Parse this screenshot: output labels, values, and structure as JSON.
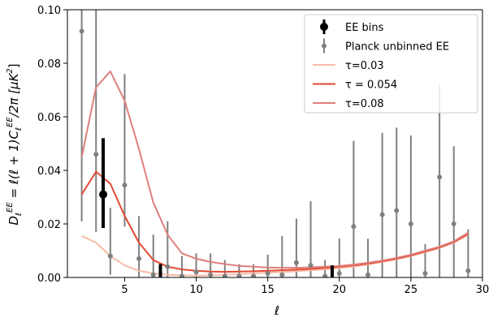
{
  "chart_data": {
    "type": "line",
    "xlabel": "ℓ",
    "ylabel": "D_ℓ^EE = ℓ(ℓ+1)C_ℓ^EE/2π  [μK²]",
    "ylabel_parts": {
      "main": "D",
      "main_sub": "ℓ",
      "main_sup": "EE",
      "eq": " = ℓ(ℓ + 1)C",
      "c_sub": "ℓ",
      "c_sup": "EE",
      "tail": "/2π  [μK",
      "unit_sup": "2",
      "close": "]"
    },
    "xlim": [
      1,
      30
    ],
    "ylim": [
      0.0,
      0.1
    ],
    "xticks": [
      5,
      10,
      15,
      20,
      25,
      30
    ],
    "yticks": [
      0.0,
      0.02,
      0.04,
      0.06,
      0.08,
      0.1
    ],
    "ytick_labels": [
      "0.00",
      "0.02",
      "0.04",
      "0.06",
      "0.08",
      "0.10"
    ],
    "grid": false,
    "legend_position": "top-right",
    "legend": [
      {
        "label": "EE bins",
        "kind": "binned",
        "color": "#000000"
      },
      {
        "label": "Planck unbinned EE",
        "kind": "unbinned",
        "color": "#808080"
      },
      {
        "label": "τ=0.03",
        "kind": "line",
        "color": "#f7bba6"
      },
      {
        "label": "τ = 0.054",
        "kind": "line",
        "color": "#e34a33"
      },
      {
        "label": "τ=0.08",
        "kind": "line",
        "color": "#de7f7d"
      }
    ],
    "x": [
      2,
      3,
      4,
      5,
      6,
      7,
      8,
      9,
      10,
      11,
      12,
      13,
      14,
      15,
      16,
      17,
      18,
      19,
      20,
      21,
      22,
      23,
      24,
      25,
      26,
      27,
      28,
      29
    ],
    "series": [
      {
        "name": "τ=0.03",
        "color": "#f7bba6",
        "values": [
          0.0155,
          0.013,
          0.008,
          0.0045,
          0.0025,
          0.0015,
          0.001,
          0.0008,
          0.0007,
          0.0008,
          0.001,
          0.0012,
          0.0015,
          0.0018,
          0.002,
          0.0023,
          0.0027,
          0.003,
          0.0035,
          0.004,
          0.0048,
          0.0058,
          0.0068,
          0.008,
          0.0095,
          0.011,
          0.013,
          0.016
        ]
      },
      {
        "name": "τ = 0.054",
        "color": "#e34a33",
        "values": [
          0.031,
          0.0395,
          0.035,
          0.023,
          0.013,
          0.0065,
          0.004,
          0.003,
          0.0025,
          0.0022,
          0.0021,
          0.0022,
          0.0023,
          0.0025,
          0.0027,
          0.0029,
          0.0032,
          0.0036,
          0.004,
          0.0045,
          0.0052,
          0.006,
          0.007,
          0.0082,
          0.0097,
          0.0112,
          0.0132,
          0.0162
        ]
      },
      {
        "name": "τ=0.08",
        "color": "#de7f7d",
        "values": [
          0.045,
          0.071,
          0.077,
          0.066,
          0.048,
          0.028,
          0.016,
          0.009,
          0.007,
          0.0058,
          0.005,
          0.0043,
          0.004,
          0.0037,
          0.0036,
          0.0036,
          0.0038,
          0.004,
          0.0043,
          0.0048,
          0.0055,
          0.0063,
          0.0073,
          0.0085,
          0.01,
          0.0115,
          0.0135,
          0.0167
        ]
      }
    ],
    "unbinned": [
      {
        "x": 2,
        "y": 0.092,
        "lo": 0.021,
        "hi": 0.102
      },
      {
        "x": 3,
        "y": 0.046,
        "lo": 0.017,
        "hi": 0.102
      },
      {
        "x": 4,
        "y": 0.008,
        "lo": 0.001,
        "hi": 0.026
      },
      {
        "x": 5,
        "y": 0.0345,
        "lo": 0.019,
        "hi": 0.076
      },
      {
        "x": 6,
        "y": 0.007,
        "lo": 0.0,
        "hi": 0.023
      },
      {
        "x": 7,
        "y": 0.001,
        "lo": 0.0,
        "hi": 0.016
      },
      {
        "x": 8,
        "y": 0.004,
        "lo": 0.0,
        "hi": 0.021
      },
      {
        "x": 9,
        "y": 0.0005,
        "lo": 0.0,
        "hi": 0.008
      },
      {
        "x": 10,
        "y": 0.002,
        "lo": 0.0,
        "hi": 0.009
      },
      {
        "x": 11,
        "y": 0.001,
        "lo": 0.0,
        "hi": 0.009
      },
      {
        "x": 12,
        "y": 0.0005,
        "lo": 0.0,
        "hi": 0.0065
      },
      {
        "x": 13,
        "y": 0.0005,
        "lo": 0.0,
        "hi": 0.005
      },
      {
        "x": 14,
        "y": 0.0005,
        "lo": 0.0,
        "hi": 0.005
      },
      {
        "x": 15,
        "y": 0.0015,
        "lo": 0.0,
        "hi": 0.0085
      },
      {
        "x": 16,
        "y": 0.001,
        "lo": 0.0,
        "hi": 0.0155
      },
      {
        "x": 17,
        "y": 0.0055,
        "lo": 0.0,
        "hi": 0.022
      },
      {
        "x": 18,
        "y": 0.0045,
        "lo": 0.0,
        "hi": 0.0285
      },
      {
        "x": 19,
        "y": 0.0005,
        "lo": 0.0,
        "hi": 0.0065
      },
      {
        "x": 20,
        "y": 0.0015,
        "lo": 0.0,
        "hi": 0.0145
      },
      {
        "x": 21,
        "y": 0.019,
        "lo": 0.0,
        "hi": 0.051
      },
      {
        "x": 22,
        "y": 0.001,
        "lo": 0.0,
        "hi": 0.0145
      },
      {
        "x": 23,
        "y": 0.0235,
        "lo": 0.0,
        "hi": 0.054
      },
      {
        "x": 24,
        "y": 0.025,
        "lo": 0.0,
        "hi": 0.056
      },
      {
        "x": 25,
        "y": 0.02,
        "lo": 0.0,
        "hi": 0.053
      },
      {
        "x": 26,
        "y": 0.0015,
        "lo": 0.0,
        "hi": 0.0125
      },
      {
        "x": 27,
        "y": 0.0375,
        "lo": 0.0,
        "hi": 0.072
      },
      {
        "x": 28,
        "y": 0.02,
        "lo": 0.0,
        "hi": 0.049
      },
      {
        "x": 29,
        "y": 0.0025,
        "lo": 0.0,
        "hi": 0.018
      }
    ],
    "bins": [
      {
        "x": 3.5,
        "y": 0.031,
        "lo": 0.0185,
        "hi": 0.052
      },
      {
        "x": 7.5,
        "y": 0.0,
        "lo": 0.0,
        "hi": 0.005
      },
      {
        "x": 19.5,
        "y": 0.0,
        "lo": 0.0,
        "hi": 0.0045
      }
    ]
  }
}
